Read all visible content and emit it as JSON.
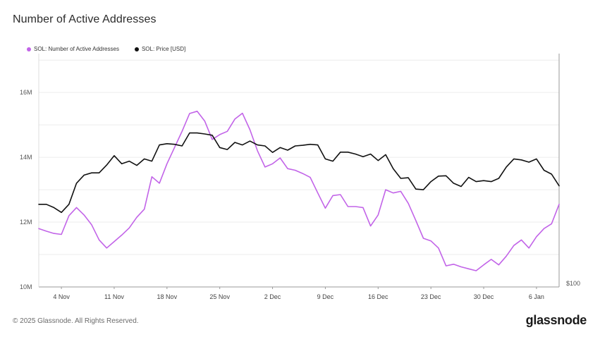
{
  "header": {
    "title": "Number of Active Addresses"
  },
  "footer": {
    "copyright": "© 2025 Glassnode. All Rights Reserved.",
    "brand": "glassnode"
  },
  "colors": {
    "addresses": "#c264e8",
    "price": "#111111",
    "grid": "#ececec",
    "axis": "#999999"
  },
  "chart_data": {
    "type": "line",
    "title": "Number of Active Addresses",
    "x_tick_labels": [
      "4 Nov",
      "11 Nov",
      "18 Nov",
      "25 Nov",
      "2 Dec",
      "9 Dec",
      "16 Dec",
      "23 Dec",
      "30 Dec",
      "6 Jan"
    ],
    "y_left": {
      "ticks": [
        "10M",
        "12M",
        "14M",
        "16M"
      ],
      "tick_values": [
        10,
        12,
        14,
        16
      ],
      "range": [
        10,
        17.2
      ],
      "unit": "M"
    },
    "y_right": {
      "ticks": [
        "$100"
      ]
    },
    "legend": [
      "SOL: Number of Active Addresses",
      "SOL: Price [USD]"
    ],
    "grid": true,
    "series": [
      {
        "name": "SOL: Number of Active Addresses",
        "axis": "left",
        "values": [
          11.8,
          11.72,
          11.65,
          11.62,
          12.2,
          12.45,
          12.22,
          11.92,
          11.45,
          11.2,
          11.4,
          11.6,
          11.82,
          12.15,
          12.4,
          13.4,
          13.2,
          13.8,
          14.3,
          14.8,
          15.35,
          15.42,
          15.12,
          14.55,
          14.7,
          14.8,
          15.18,
          15.36,
          14.85,
          14.2,
          13.7,
          13.8,
          13.98,
          13.65,
          13.6,
          13.5,
          13.38,
          12.9,
          12.43,
          12.82,
          12.85,
          12.48,
          12.48,
          12.45,
          11.88,
          12.22,
          13.0,
          12.9,
          12.95,
          12.58,
          12.05,
          11.5,
          11.42,
          11.2,
          10.65,
          10.7,
          10.62,
          10.56,
          10.5,
          10.68,
          10.85,
          10.68,
          10.95,
          11.28,
          11.45,
          11.2,
          11.55,
          11.8,
          11.95,
          12.55
        ]
      },
      {
        "name": "SOL: Price [USD]",
        "axis": "right",
        "values": [
          12.55,
          12.55,
          12.45,
          12.3,
          12.55,
          13.2,
          13.45,
          13.52,
          13.52,
          13.76,
          14.05,
          13.8,
          13.88,
          13.75,
          13.95,
          13.88,
          14.38,
          14.42,
          14.4,
          14.35,
          14.75,
          14.75,
          14.72,
          14.68,
          14.3,
          14.24,
          14.46,
          14.38,
          14.5,
          14.38,
          14.35,
          14.15,
          14.3,
          14.22,
          14.35,
          14.37,
          14.4,
          14.38,
          13.95,
          13.88,
          14.16,
          14.16,
          14.1,
          14.02,
          14.1,
          13.9,
          14.08,
          13.65,
          13.35,
          13.37,
          13.02,
          13.0,
          13.25,
          13.42,
          13.43,
          13.2,
          13.1,
          13.38,
          13.25,
          13.28,
          13.25,
          13.35,
          13.7,
          13.95,
          13.92,
          13.85,
          13.95,
          13.6,
          13.48,
          13.12
        ]
      }
    ]
  }
}
